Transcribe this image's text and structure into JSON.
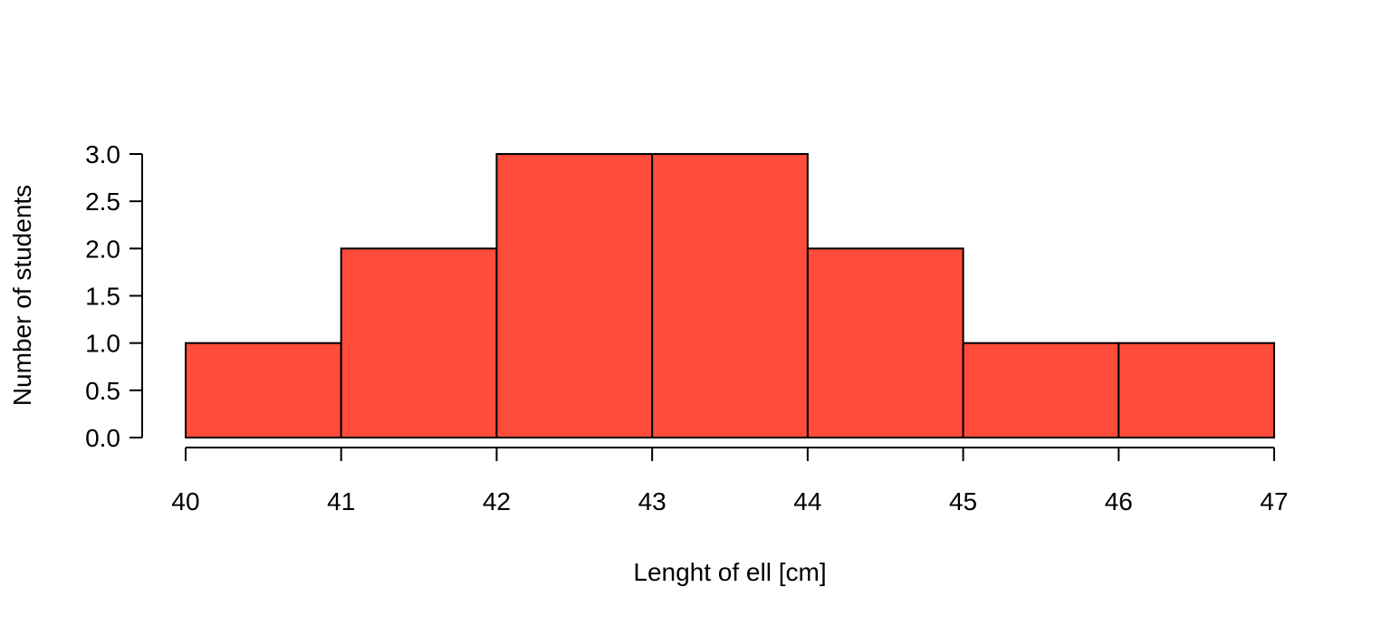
{
  "chart_data": {
    "type": "bar",
    "subtype": "histogram",
    "title": "",
    "xlabel": "Lenght of ell [cm]",
    "ylabel": "Number of students",
    "bins": [
      {
        "start": 40,
        "end": 41,
        "count": 1
      },
      {
        "start": 41,
        "end": 42,
        "count": 2
      },
      {
        "start": 42,
        "end": 43,
        "count": 3
      },
      {
        "start": 43,
        "end": 44,
        "count": 3
      },
      {
        "start": 44,
        "end": 45,
        "count": 2
      },
      {
        "start": 45,
        "end": 46,
        "count": 1
      },
      {
        "start": 46,
        "end": 47,
        "count": 1
      }
    ],
    "xlim": [
      40,
      47
    ],
    "ylim": [
      0,
      3
    ],
    "xticks": [
      40,
      41,
      42,
      43,
      44,
      45,
      46,
      47
    ],
    "yticks": [
      "0.0",
      "0.5",
      "1.0",
      "1.5",
      "2.0",
      "2.5",
      "3.0"
    ],
    "bar_color": "#FF4C3B",
    "edge_color": "#000000",
    "grid": false,
    "legend": "none"
  }
}
